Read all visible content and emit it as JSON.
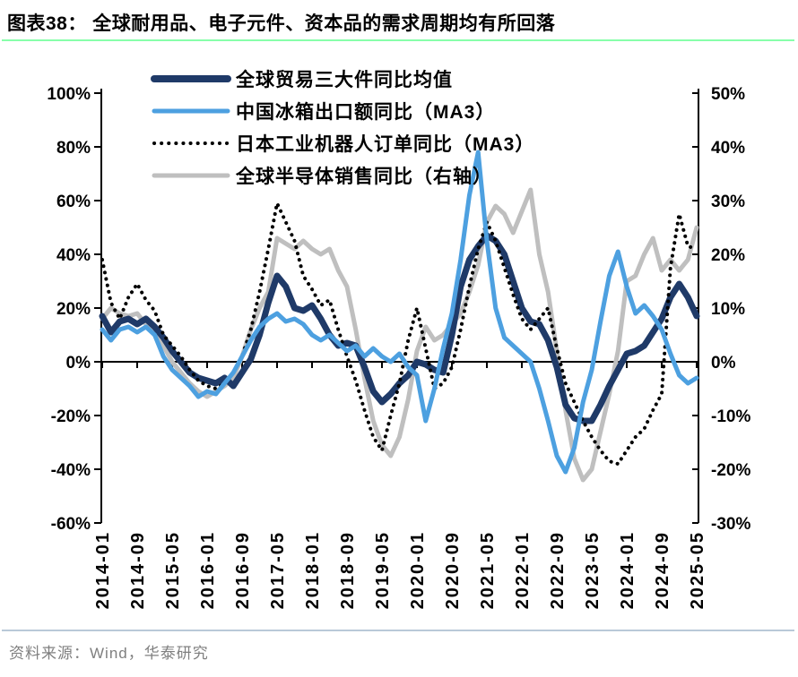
{
  "title": "图表38：  全球耐用品、电子元件、资本品的需求周期均有所回落",
  "footer": {
    "source_label": "资料来源：Wind，华泰研究"
  },
  "colors": {
    "navy": "#1f3a68",
    "light_blue": "#4da0e0",
    "dotted_black": "#000000",
    "gray": "#bfbfbf",
    "axis": "#000000",
    "title_rule": "#92aac2",
    "footer_text": "#7f7f7f"
  },
  "chart_data": {
    "type": "line",
    "title": "全球耐用品、电子元件、资本品的需求周期均有所回落",
    "xlabel": "",
    "ylabel_left": "%",
    "ylabel_right": "%",
    "grid": false,
    "legend_position": "top-left-inside",
    "left_axis": {
      "min": -60,
      "max": 100,
      "step": 20,
      "ticks": [
        "100%",
        "80%",
        "60%",
        "40%",
        "20%",
        "0%",
        "-20%",
        "-40%",
        "-60%"
      ]
    },
    "right_axis": {
      "min": -30,
      "max": 50,
      "step": 10,
      "ticks": [
        "50%",
        "40%",
        "30%",
        "20%",
        "10%",
        "0%",
        "-10%",
        "-20%",
        "-30%"
      ]
    },
    "x_tick_labels": [
      "2014-01",
      "2014-09",
      "2015-05",
      "2016-01",
      "2016-09",
      "2017-05",
      "2018-01",
      "2018-09",
      "2019-05",
      "2020-01",
      "2020-09",
      "2021-05",
      "2022-01",
      "2022-09",
      "2023-05",
      "2024-01",
      "2024-09",
      "2025-05"
    ],
    "categories": [
      "2014-01",
      "2014-03",
      "2014-05",
      "2014-07",
      "2014-09",
      "2014-11",
      "2015-01",
      "2015-03",
      "2015-05",
      "2015-07",
      "2015-09",
      "2015-11",
      "2016-01",
      "2016-03",
      "2016-05",
      "2016-07",
      "2016-09",
      "2016-11",
      "2017-01",
      "2017-03",
      "2017-05",
      "2017-07",
      "2017-09",
      "2017-11",
      "2018-01",
      "2018-03",
      "2018-05",
      "2018-07",
      "2018-09",
      "2018-11",
      "2019-01",
      "2019-03",
      "2019-05",
      "2019-07",
      "2019-09",
      "2019-11",
      "2020-01",
      "2020-03",
      "2020-05",
      "2020-07",
      "2020-09",
      "2020-11",
      "2021-01",
      "2021-03",
      "2021-05",
      "2021-07",
      "2021-09",
      "2021-11",
      "2022-01",
      "2022-03",
      "2022-05",
      "2022-07",
      "2022-09",
      "2022-11",
      "2023-01",
      "2023-03",
      "2023-05",
      "2023-07",
      "2023-09",
      "2023-11",
      "2024-01",
      "2024-03",
      "2024-05",
      "2024-07",
      "2024-09",
      "2024-11",
      "2025-01",
      "2025-03",
      "2025-05"
    ],
    "series": [
      {
        "name": "全球贸易三大件同比均值",
        "axis": "left",
        "color": "#1f3a68",
        "style": "solid",
        "width": 7,
        "values": [
          17,
          11,
          15,
          16,
          14,
          16,
          13,
          9,
          4,
          0,
          -4,
          -6,
          -7,
          -8,
          -6,
          -9,
          -4,
          1,
          10,
          22,
          32,
          28,
          20,
          19,
          21,
          16,
          10,
          6,
          7,
          6,
          -2,
          -11,
          -15,
          -12,
          -8,
          -5,
          0,
          -1,
          -3,
          -4,
          10,
          28,
          38,
          43,
          47,
          45,
          40,
          30,
          20,
          15,
          14,
          8,
          -2,
          -16,
          -21,
          -22,
          -22,
          -16,
          -9,
          -3,
          3,
          4,
          6,
          11,
          16,
          24,
          29,
          24,
          17
        ]
      },
      {
        "name": "中国冰箱出口额同比（MA3）",
        "axis": "left",
        "color": "#4da0e0",
        "style": "solid",
        "width": 5,
        "values": [
          12,
          8,
          12,
          13,
          11,
          13,
          10,
          2,
          -3,
          -6,
          -9,
          -13,
          -11,
          -12,
          -8,
          -4,
          2,
          8,
          13,
          16,
          18,
          15,
          16,
          14,
          10,
          8,
          10,
          7,
          4,
          6,
          2,
          5,
          2,
          0,
          3,
          -2,
          -5,
          -22,
          -10,
          5,
          18,
          38,
          62,
          78,
          45,
          20,
          9,
          6,
          3,
          0,
          -10,
          -22,
          -35,
          -41,
          -32,
          -15,
          -3,
          15,
          32,
          41,
          28,
          18,
          21,
          17,
          12,
          3,
          -5,
          -8,
          -6
        ]
      },
      {
        "name": "日本工业机器人订单同比（MA3）",
        "axis": "left",
        "color": "#000000",
        "style": "dotted",
        "width": 4,
        "values": [
          38,
          22,
          16,
          24,
          29,
          23,
          19,
          10,
          6,
          2,
          -3,
          -7,
          -9,
          -10,
          -8,
          -4,
          2,
          12,
          26,
          42,
          59,
          52,
          45,
          32,
          27,
          21,
          23,
          12,
          2,
          -7,
          -18,
          -28,
          -33,
          -20,
          -8,
          8,
          20,
          5,
          -10,
          -8,
          -2,
          12,
          28,
          42,
          52,
          45,
          35,
          25,
          16,
          12,
          16,
          20,
          5,
          -8,
          -15,
          -22,
          -28,
          -33,
          -37,
          -38,
          -33,
          -28,
          -25,
          -18,
          -12,
          35,
          55,
          43,
          42
        ]
      },
      {
        "name": "全球半导体销售同比（右轴）",
        "axis": "right",
        "color": "#bfbfbf",
        "style": "solid",
        "width": 5,
        "values": [
          8,
          10,
          9,
          8.5,
          9,
          7,
          5,
          3,
          0,
          -2,
          -4,
          -5.5,
          -6.5,
          -5.5,
          -4.5,
          -3,
          1,
          6,
          10,
          13,
          23,
          22,
          21,
          22.5,
          21,
          20,
          21,
          17,
          14,
          6,
          -3,
          -11,
          -15.5,
          -17.5,
          -14,
          -7,
          2,
          6.5,
          4,
          5,
          7,
          9,
          13,
          18,
          26,
          29,
          27.5,
          24,
          28,
          32,
          20,
          13,
          2,
          -9,
          -18,
          -22,
          -20,
          -13,
          -6,
          2,
          15,
          16,
          20,
          23,
          17,
          19,
          17,
          19,
          25
        ]
      }
    ]
  }
}
